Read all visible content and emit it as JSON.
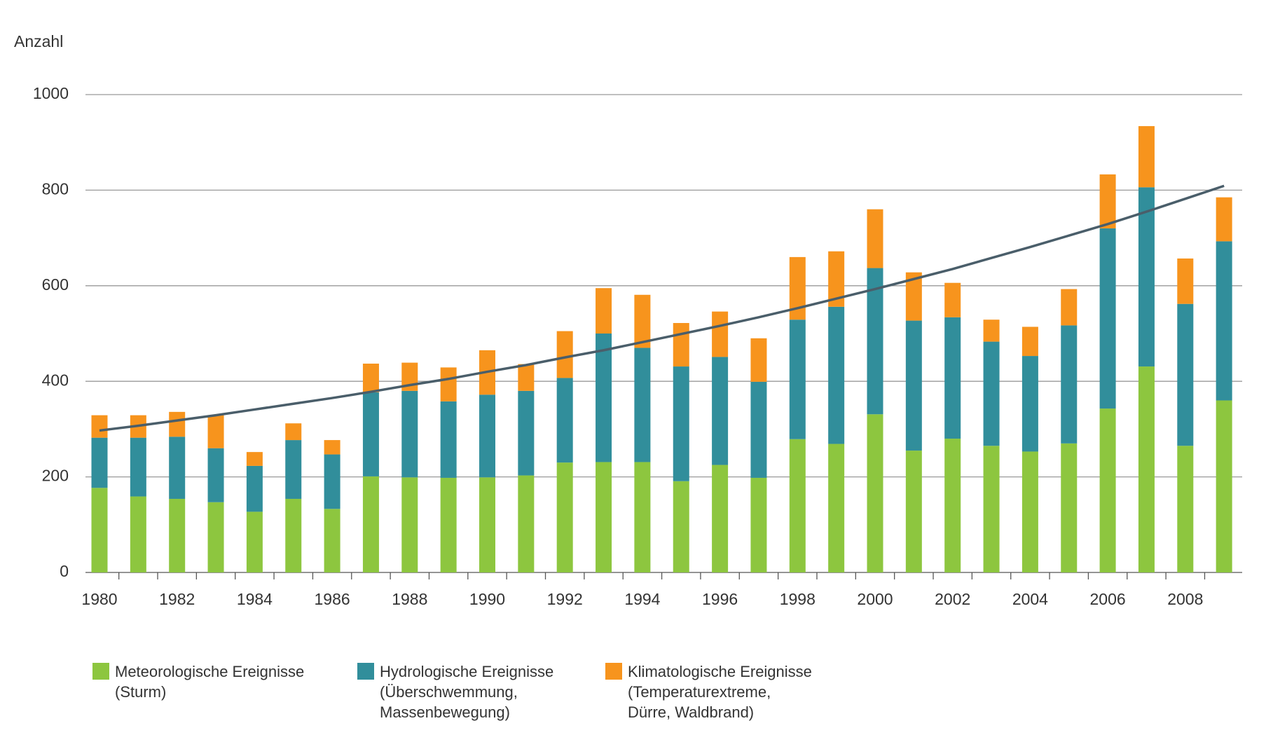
{
  "chart_data": {
    "type": "bar",
    "stacked": true,
    "y_label": "Anzahl",
    "categories": [
      "1980",
      null,
      "1982",
      null,
      "1984",
      null,
      "1986",
      null,
      "1988",
      null,
      "1990",
      null,
      "1992",
      null,
      "1994",
      null,
      "1996",
      null,
      "1998",
      null,
      "2000",
      null,
      "2002",
      null,
      "2004",
      null,
      "2006",
      null,
      "2008",
      null
    ],
    "series": [
      {
        "name": "Meteorologische Ereignisse\n(Sturm)",
        "color": "#8dc63f",
        "values": [
          177,
          159,
          154,
          147,
          127,
          154,
          133,
          201,
          199,
          198,
          199,
          203,
          230,
          231,
          231,
          191,
          225,
          198,
          279,
          269,
          331,
          255,
          280,
          265,
          253,
          270,
          343,
          431,
          265,
          360
        ]
      },
      {
        "name": "Hydrologische Ereignisse\n(Überschwemmung,\nMassenbewegung)",
        "color": "#318e9b",
        "values": [
          105,
          123,
          130,
          113,
          96,
          123,
          114,
          176,
          181,
          160,
          173,
          177,
          177,
          269,
          239,
          240,
          226,
          201,
          250,
          287,
          306,
          272,
          254,
          218,
          200,
          247,
          377,
          375,
          297,
          333
        ]
      },
      {
        "name": "Klimatologische Ereignisse\n(Temperaturextreme,\nDürre, Waldbrand)",
        "color": "#f7941d",
        "values": [
          47,
          47,
          52,
          69,
          29,
          35,
          30,
          60,
          59,
          71,
          93,
          56,
          98,
          95,
          111,
          91,
          95,
          91,
          131,
          116,
          123,
          101,
          72,
          46,
          61,
          76,
          113,
          128,
          95,
          92
        ]
      }
    ],
    "trend": {
      "color": "#4a5e6a",
      "values": [
        297,
        307,
        318,
        329,
        341,
        353,
        365,
        378,
        392,
        405,
        420,
        434,
        450,
        465,
        482,
        499,
        516,
        534,
        553,
        573,
        593,
        614,
        635,
        658,
        681,
        705,
        729,
        755,
        782,
        809
      ]
    },
    "ylim": [
      0,
      1000
    ],
    "yticks": [
      0,
      200,
      400,
      600,
      800,
      1000
    ],
    "grid": true
  }
}
